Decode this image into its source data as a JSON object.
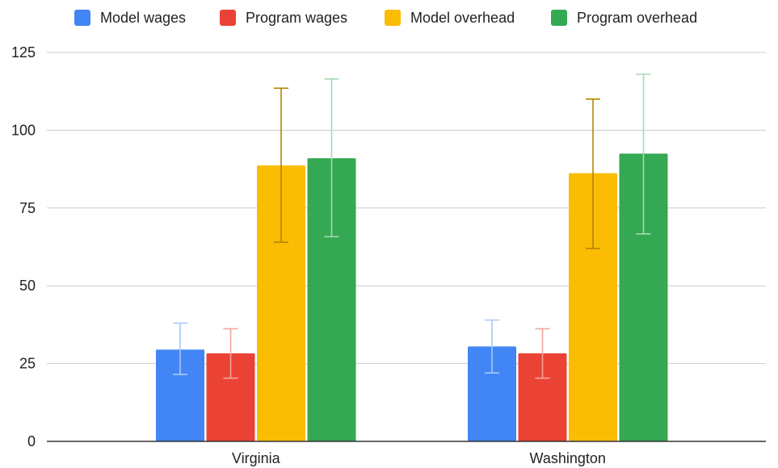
{
  "chart_data": {
    "type": "bar",
    "categories": [
      "Virginia",
      "Washington"
    ],
    "series": [
      {
        "name": "Model wages",
        "color": "#4285F4",
        "error_color": "#A9C8F8",
        "values": [
          29.5,
          30.5
        ],
        "error_low": [
          21.5,
          22
        ],
        "error_high": [
          38,
          39
        ]
      },
      {
        "name": "Program wages",
        "color": "#EA4335",
        "error_color": "#F2A49D",
        "values": [
          28.3,
          28.3
        ],
        "error_low": [
          20.3,
          20.3
        ],
        "error_high": [
          36.2,
          36.2
        ]
      },
      {
        "name": "Model overhead",
        "color": "#FBBC04",
        "error_color": "#B38600",
        "values": [
          88.7,
          86.2
        ],
        "error_low": [
          64,
          62
        ],
        "error_high": [
          113.5,
          110
        ]
      },
      {
        "name": "Program overhead",
        "color": "#34A853",
        "error_color": "#A6D8B3",
        "values": [
          91,
          92.5
        ],
        "error_low": [
          65.8,
          66.7
        ],
        "error_high": [
          116.5,
          118
        ]
      }
    ],
    "yticks": [
      "0",
      "25",
      "50",
      "75",
      "100",
      "125"
    ],
    "ylim": [
      0,
      125
    ],
    "grid": true,
    "legend_position": "top"
  }
}
